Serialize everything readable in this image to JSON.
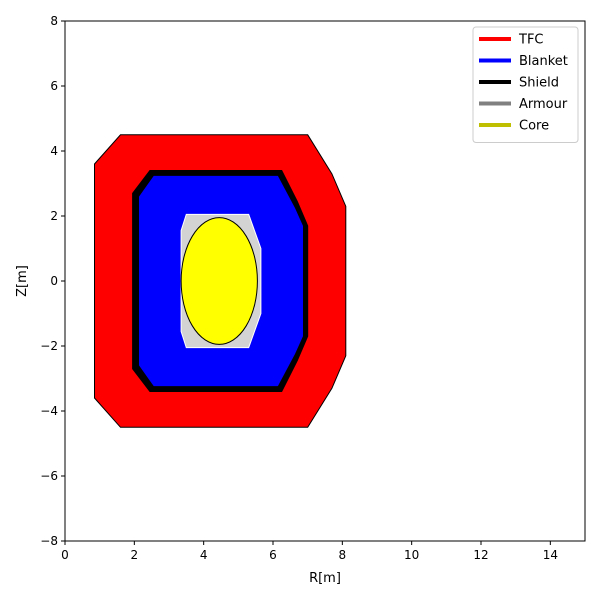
{
  "chart_data": {
    "type": "area",
    "title": "",
    "xlabel": "R[m]",
    "ylabel": "Z[m]",
    "xlim": [
      0,
      15
    ],
    "ylim": [
      -8,
      8
    ],
    "grid": false,
    "legend_position": "top-right",
    "x_ticks": [
      0,
      2,
      4,
      6,
      8,
      10,
      12,
      14
    ],
    "y_ticks": [
      -8,
      -6,
      -4,
      -2,
      0,
      2,
      4,
      6,
      8
    ],
    "x_tick_labels": [
      "0",
      "2",
      "4",
      "6",
      "8",
      "10",
      "12",
      "14"
    ],
    "y_tick_labels": [
      "−8",
      "−6",
      "−4",
      "−2",
      "0",
      "2",
      "4",
      "6",
      "8"
    ],
    "series": [
      {
        "name": "TFC",
        "color": "#ff0000",
        "polygon": [
          [
            1.6,
            4.5
          ],
          [
            7.0,
            4.5
          ],
          [
            7.7,
            3.3
          ],
          [
            8.1,
            2.3
          ],
          [
            8.1,
            -2.3
          ],
          [
            7.7,
            -3.3
          ],
          [
            7.0,
            -4.5
          ],
          [
            1.6,
            -4.5
          ],
          [
            0.85,
            -3.6
          ],
          [
            0.85,
            3.6
          ]
        ]
      },
      {
        "name": "Shield",
        "color": "#000000",
        "polygon": [
          [
            2.45,
            3.4
          ],
          [
            6.25,
            3.4
          ],
          [
            6.7,
            2.45
          ],
          [
            7.0,
            1.7
          ],
          [
            7.0,
            -1.7
          ],
          [
            6.7,
            -2.45
          ],
          [
            6.25,
            -3.4
          ],
          [
            2.45,
            -3.4
          ],
          [
            1.95,
            -2.7
          ],
          [
            1.95,
            2.7
          ]
        ]
      },
      {
        "name": "Blanket",
        "color": "#0000ff",
        "polygon": [
          [
            2.55,
            3.25
          ],
          [
            6.15,
            3.25
          ],
          [
            6.65,
            2.25
          ],
          [
            6.88,
            1.7
          ],
          [
            6.88,
            -1.7
          ],
          [
            6.65,
            -2.25
          ],
          [
            6.15,
            -3.25
          ],
          [
            2.55,
            -3.25
          ],
          [
            2.12,
            -2.6
          ],
          [
            2.12,
            2.6
          ]
        ]
      },
      {
        "name": "Armour",
        "color": "#d3d3d3",
        "polygon": [
          [
            3.5,
            2.05
          ],
          [
            5.3,
            2.05
          ],
          [
            5.65,
            1.0
          ],
          [
            5.65,
            -1.0
          ],
          [
            5.3,
            -2.05
          ],
          [
            3.5,
            -2.05
          ],
          [
            3.35,
            -1.55
          ],
          [
            3.35,
            1.55
          ]
        ]
      },
      {
        "name": "Core",
        "color": "#ffff00",
        "ellipse": {
          "cx": 4.45,
          "cz": 0.0,
          "rx": 1.1,
          "rz": 1.95
        }
      }
    ]
  },
  "legend": {
    "entries": [
      {
        "label": "TFC",
        "color": "#ff0000"
      },
      {
        "label": "Blanket",
        "color": "#0000ff"
      },
      {
        "label": "Shield",
        "color": "#000000"
      },
      {
        "label": "Armour",
        "color": "#808080"
      },
      {
        "label": "Core",
        "color": "#bfbf00"
      }
    ]
  }
}
